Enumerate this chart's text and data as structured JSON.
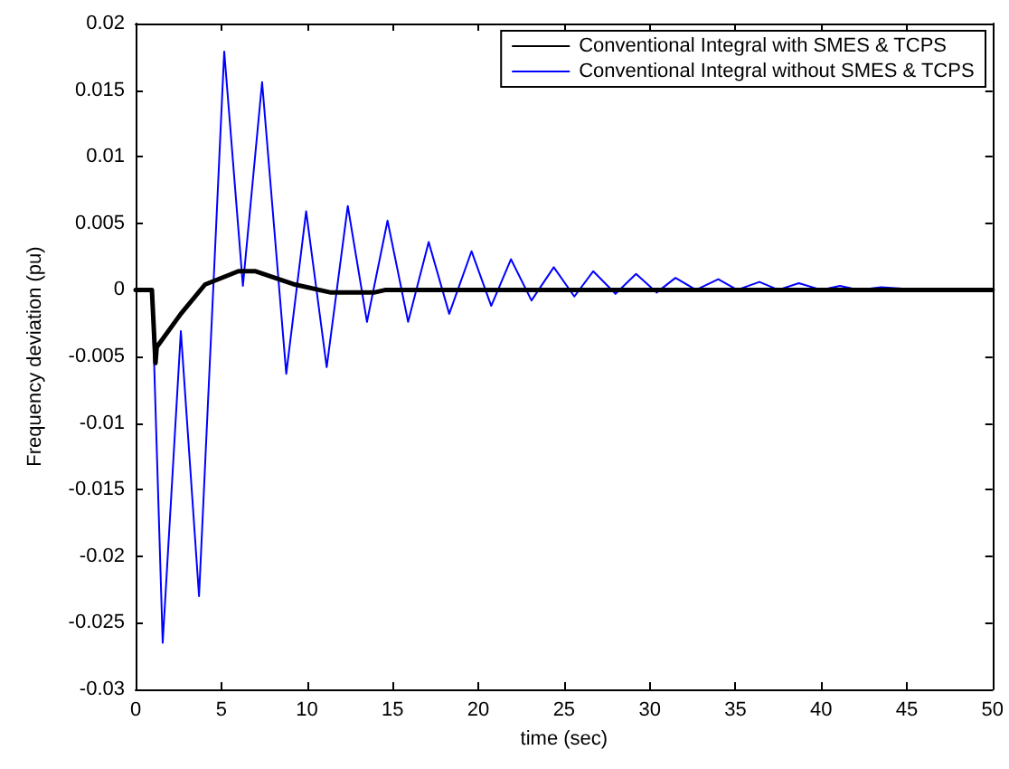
{
  "chart_data": {
    "type": "line",
    "xlabel": "time (sec)",
    "ylabel": "Frequency deviation (pu)",
    "xlim": [
      0,
      50
    ],
    "xticks": [
      0,
      5,
      10,
      15,
      20,
      25,
      30,
      35,
      40,
      45,
      50
    ],
    "ylim": [
      -0.03,
      0.02
    ],
    "yticks": [
      -0.03,
      -0.025,
      -0.02,
      -0.015,
      -0.01,
      -0.005,
      0,
      0.005,
      0.01,
      0.015,
      0.02
    ],
    "grid": false,
    "legend": "top right",
    "marker": "none",
    "line_style": "solid",
    "series": [
      {
        "name": "Conventional Integral with SMES & TCPS",
        "color": "#000000",
        "x": [
          0,
          0.95,
          1.16,
          1.23,
          2.64,
          4.05,
          6.0,
          7.0,
          9.3,
          11.4,
          13.9,
          14.6,
          50
        ],
        "values": [
          0,
          0,
          -0.0055,
          -0.0043,
          -0.0018,
          0.0004,
          0.0014,
          0.0014,
          0.0004,
          -0.0002,
          -0.0002,
          0,
          0
        ]
      },
      {
        "name": "Conventional Integral without SMES & TCPS",
        "color": "#0000ff",
        "x": [
          0,
          0.95,
          1.58,
          2.64,
          3.7,
          5.17,
          6.26,
          7.38,
          8.79,
          9.95,
          11.15,
          12.38,
          13.5,
          14.7,
          15.9,
          17.1,
          18.3,
          19.6,
          20.75,
          21.9,
          23.1,
          24.4,
          25.6,
          26.7,
          28.0,
          29.2,
          30.4,
          31.5,
          32.7,
          34.0,
          35.1,
          36.4,
          37.5,
          38.7,
          40.0,
          41.1,
          42.2,
          43.5,
          46,
          50
        ],
        "values": [
          0,
          0,
          -0.0265,
          -0.0031,
          -0.023,
          0.0179,
          0.0003,
          0.0156,
          -0.0063,
          0.0059,
          -0.0058,
          0.0063,
          -0.0024,
          0.0052,
          -0.0024,
          0.0036,
          -0.0018,
          0.0029,
          -0.0012,
          0.0023,
          -0.0008,
          0.0017,
          -0.0005,
          0.0014,
          -0.0003,
          0.0012,
          -0.0002,
          0.0009,
          0,
          0.0008,
          0,
          0.0006,
          0,
          0.0005,
          0,
          0.0003,
          0,
          0.0002,
          0,
          0
        ]
      }
    ]
  }
}
